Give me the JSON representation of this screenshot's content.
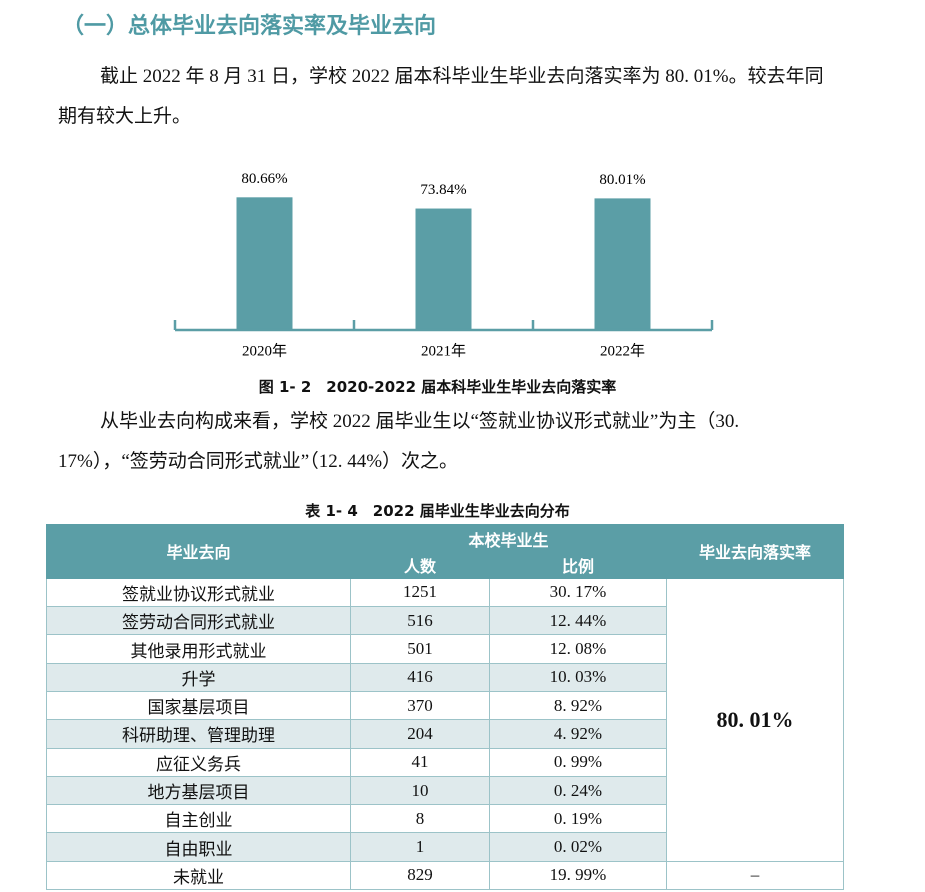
{
  "heading": "（一）总体毕业去向落实率及毕业去向",
  "paragraphs": [
    "截止 2022 年 8 月 31 日，学校 2022 届本科毕业生毕业去向落实率为 80. 01%。较去年同期有较大上升。",
    "从毕业去向构成来看，学校 2022 届毕业生以“签就业协议形式就业”为主（30. 17%），“签劳动合同形式就业”（12. 44%）次之。"
  ],
  "chart_data": {
    "type": "bar",
    "categories": [
      "2020年",
      "2021年",
      "2022年"
    ],
    "values": [
      80.66,
      73.84,
      80.01
    ],
    "value_labels": [
      "80.66%",
      "73.84%",
      "80.01%"
    ],
    "color": "#5b9ea6"
  },
  "figure_caption": "图 1- 2　2020-2022 届本科毕业生毕业去向落实率",
  "table": {
    "title": "表 1- 4　2022 届毕业生毕业去向分布",
    "headers": {
      "destination": "毕业去向",
      "group": "本校毕业生",
      "count": "人数",
      "ratio": "比例",
      "rate": "毕业去向落实率"
    },
    "rows": [
      [
        "签就业协议形式就业",
        1251,
        "30. 17%"
      ],
      [
        "签劳动合同形式就业",
        516,
        "12. 44%"
      ],
      [
        "其他录用形式就业",
        501,
        "12. 08%"
      ],
      [
        "升学",
        416,
        "10. 03%"
      ],
      [
        "国家基层项目",
        370,
        "8. 92%"
      ],
      [
        "科研助理、管理助理",
        204,
        "4. 92%"
      ],
      [
        "应征义务兵",
        41,
        "0. 99%"
      ],
      [
        "地方基层项目",
        10,
        "0. 24%"
      ],
      [
        "自主创业",
        8,
        "0. 19%"
      ],
      [
        "自由职业",
        1,
        "0. 02%"
      ]
    ],
    "rate": "80. 01%",
    "last_row": [
      "未就业",
      829,
      "19. 99%",
      "–"
    ]
  }
}
